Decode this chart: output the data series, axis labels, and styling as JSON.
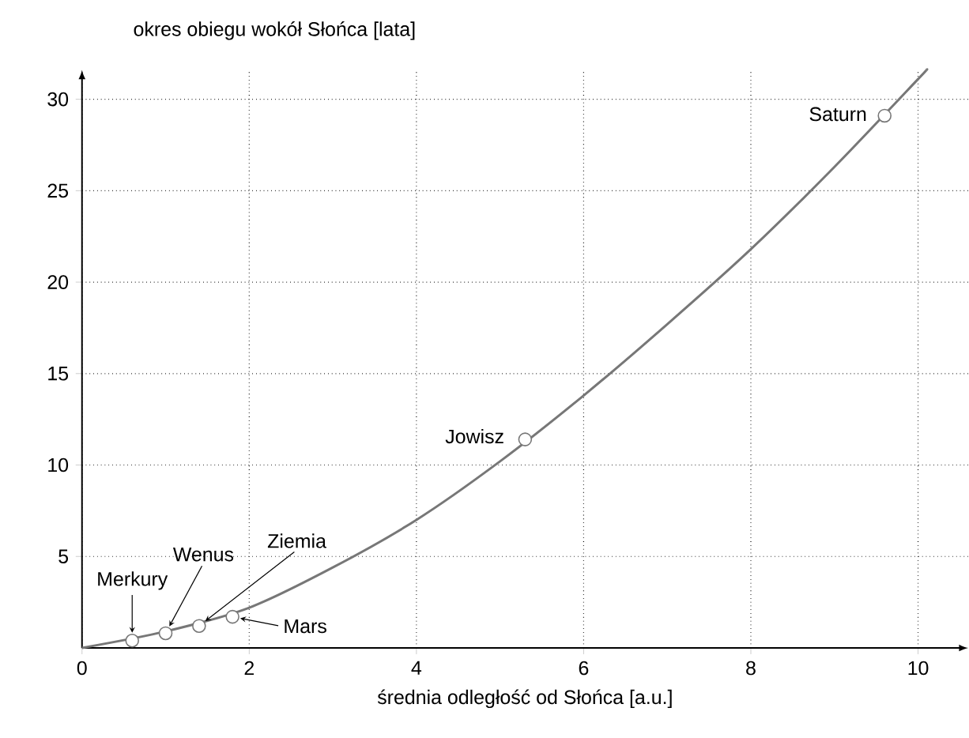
{
  "chart_data": {
    "type": "line",
    "xlabel": "średnia odległość od Słońca [a.u.]",
    "ylabel": "okres obiegu wokół Słońca [lata]",
    "xlim": [
      0,
      10.6
    ],
    "ylim": [
      0,
      31.6
    ],
    "xticks": [
      0,
      2,
      4,
      6,
      8,
      10
    ],
    "yticks": [
      5,
      10,
      15,
      20,
      25,
      30
    ],
    "grid": true,
    "series": [
      {
        "color": "#777777",
        "x": [
          0,
          1,
          2,
          3,
          4,
          5,
          6,
          7,
          8,
          9,
          10,
          10.1
        ],
        "values": [
          0,
          0.9,
          2.2,
          4.4,
          7,
          10.2,
          13.8,
          17.7,
          21.8,
          26.3,
          31.1,
          31.6
        ]
      },
      {
        "type": "scatter",
        "marker": "circle",
        "color": "#777777",
        "x": [
          0.6,
          1,
          1.4,
          1.8,
          5.3,
          9.6
        ],
        "values": [
          0.4,
          0.8,
          1.2,
          1.7,
          11.4,
          29.1
        ]
      }
    ],
    "annotations": [
      {
        "text": "Merkury",
        "x": 0.6,
        "y": 0.4
      },
      {
        "text": "Wenus",
        "x": 1,
        "y": 0.8
      },
      {
        "text": "Ziemia",
        "x": 1.4,
        "y": 1.2
      },
      {
        "text": "Mars",
        "x": 1.8,
        "y": 1.7
      },
      {
        "text": "Jowisz",
        "x": 5.3,
        "y": 11.4
      },
      {
        "text": "Saturn",
        "x": 9.6,
        "y": 29.1
      }
    ]
  }
}
